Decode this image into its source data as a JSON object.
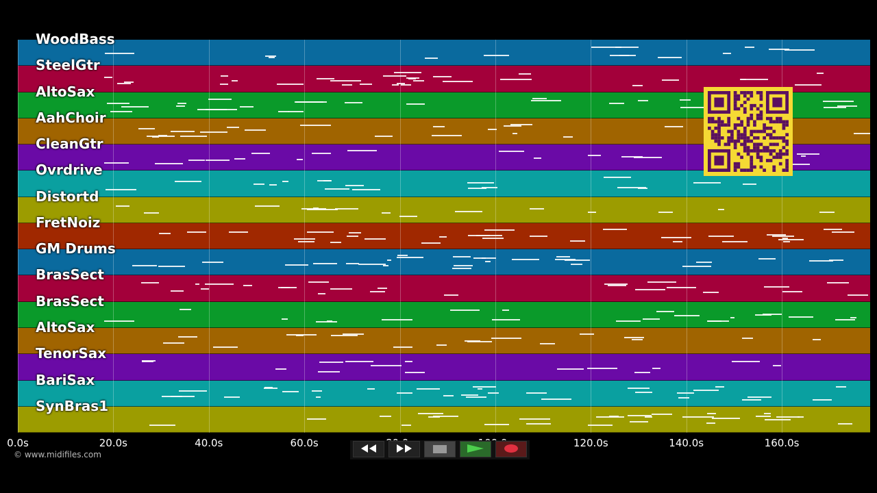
{
  "tracks": [
    {
      "name": "WoodBass",
      "color": "#0a6a9e"
    },
    {
      "name": "SteelGtr",
      "color": "#a3003a"
    },
    {
      "name": "AltoSax",
      "color": "#0a9a2a"
    },
    {
      "name": "AahChoir",
      "color": "#a06400"
    },
    {
      "name": "CleanGtr",
      "color": "#6a0aa6"
    },
    {
      "name": "Ovrdrive",
      "color": "#0aa0a0"
    },
    {
      "name": "Distortd",
      "color": "#9c9c00"
    },
    {
      "name": "FretNoiz",
      "color": "#a02800"
    },
    {
      "name": "GM Drums",
      "color": "#0a6a9e"
    },
    {
      "name": "BrasSect",
      "color": "#a3003a"
    },
    {
      "name": "BrasSect",
      "color": "#0a9a2a"
    },
    {
      "name": "AltoSax",
      "color": "#a06400"
    },
    {
      "name": "TenorSax",
      "color": "#6a0aa6"
    },
    {
      "name": "BariSax",
      "color": "#0aa0a0"
    },
    {
      "name": "SynBras1",
      "color": "#9c9c00"
    }
  ],
  "time_axis": {
    "ticks": [
      "0.0s",
      "20.0s",
      "40.0s",
      "60.0s",
      "80.0s",
      "100.0s",
      "120.0s",
      "140.0s",
      "160.0s"
    ],
    "tick_seconds": [
      0,
      20,
      40,
      60,
      80,
      100,
      120,
      140,
      160
    ],
    "max_seconds": 178.5
  },
  "copyright": "© www.midifiles.com",
  "transport": [
    {
      "name": "rewind-button",
      "icon": "rewind-icon",
      "color": "#222"
    },
    {
      "name": "fast-forward-button",
      "icon": "fast-forward-icon",
      "color": "#222"
    },
    {
      "name": "stop-button",
      "icon": "stop-icon",
      "color": "#444"
    },
    {
      "name": "play-button",
      "icon": "play-icon",
      "color": "#2a6a2a"
    },
    {
      "name": "record-button",
      "icon": "record-icon",
      "color": "#5a1a1a"
    }
  ],
  "qr_color": "#f5d934"
}
